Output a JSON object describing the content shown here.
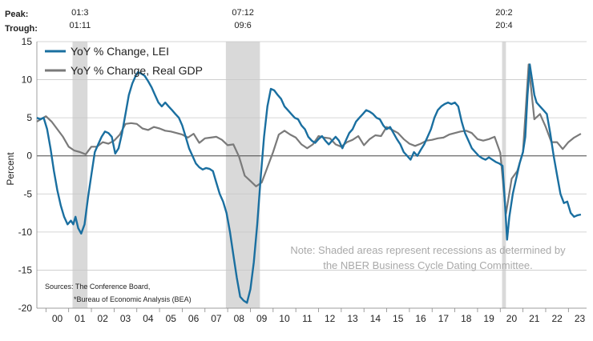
{
  "labels": {
    "peak": "Peak:",
    "trough": "Trough:"
  },
  "recessions": [
    {
      "peak": "01:3",
      "trough": "01:11",
      "start": 2001.17,
      "end": 2001.83
    },
    {
      "peak": "07:12",
      "trough": "09:6",
      "start": 2007.92,
      "end": 2009.42
    },
    {
      "peak": "20:2",
      "trough": "20:4",
      "start": 2020.08,
      "end": 2020.25
    }
  ],
  "legend": {
    "lei": "YoY % Change, LEI",
    "gdp": "YoY % Change, Real GDP"
  },
  "sources": {
    "line1": "Sources: The Conference Board,",
    "line2": "*Bureau of Economic Analysis (BEA)"
  },
  "note": {
    "line1": "Note: Shaded areas represent recessions as determined by",
    "line2": "the NBER Business Cycle Dating Committee."
  },
  "colors": {
    "lei": "#1a6fa0",
    "gdp": "#7a7a7a",
    "recession": "#d9d9d9",
    "grid": "#c8c8c8"
  },
  "chart_data": {
    "type": "line",
    "title": "",
    "xlabel": "",
    "ylabel": "Percent",
    "ylim": [
      -20,
      15
    ],
    "xlim": [
      1999.6,
      2023.8
    ],
    "yticks": [
      15,
      10,
      5,
      0,
      -5,
      -10,
      -15,
      -20
    ],
    "ytick_labels": [
      "15",
      "10",
      "5",
      "0",
      "-5",
      "-10",
      "-15",
      "-20"
    ],
    "xtick_labels": [
      "00",
      "01",
      "02",
      "03",
      "04",
      "05",
      "06",
      "07",
      "08",
      "09",
      "10",
      "11",
      "12",
      "13",
      "14",
      "15",
      "16",
      "17",
      "18",
      "19",
      "20",
      "21",
      "22",
      "23"
    ],
    "xtick_years": [
      2000,
      2001,
      2002,
      2003,
      2004,
      2005,
      2006,
      2007,
      2008,
      2009,
      2010,
      2011,
      2012,
      2013,
      2014,
      2015,
      2016,
      2017,
      2018,
      2019,
      2020,
      2021,
      2022,
      2023
    ],
    "grid": "horizontal",
    "legend_position": "top-left",
    "series": [
      {
        "name": "YoY % Change, LEI",
        "x": [
          1999.6,
          1999.75,
          1999.9,
          2000.05,
          2000.2,
          2000.35,
          2000.5,
          2000.65,
          2000.8,
          2000.95,
          2001.1,
          2001.2,
          2001.3,
          2001.42,
          2001.55,
          2001.7,
          2001.85,
          2002.0,
          2002.15,
          2002.3,
          2002.45,
          2002.6,
          2002.75,
          2002.9,
          2003.05,
          2003.2,
          2003.35,
          2003.5,
          2003.65,
          2003.8,
          2003.95,
          2004.05,
          2004.2,
          2004.35,
          2004.5,
          2004.65,
          2004.8,
          2004.95,
          2005.1,
          2005.25,
          2005.4,
          2005.55,
          2005.7,
          2005.85,
          2006.0,
          2006.15,
          2006.3,
          2006.45,
          2006.6,
          2006.75,
          2006.9,
          2007.05,
          2007.2,
          2007.35,
          2007.5,
          2007.65,
          2007.8,
          2007.95,
          2008.1,
          2008.25,
          2008.4,
          2008.55,
          2008.7,
          2008.85,
          2009.0,
          2009.15,
          2009.3,
          2009.45,
          2009.6,
          2009.75,
          2009.9,
          2010.05,
          2010.2,
          2010.35,
          2010.5,
          2010.65,
          2010.8,
          2010.95,
          2011.1,
          2011.25,
          2011.4,
          2011.55,
          2011.7,
          2011.85,
          2012.0,
          2012.15,
          2012.3,
          2012.45,
          2012.6,
          2012.75,
          2012.9,
          2013.05,
          2013.2,
          2013.35,
          2013.5,
          2013.65,
          2013.8,
          2013.95,
          2014.1,
          2014.25,
          2014.4,
          2014.55,
          2014.7,
          2014.85,
          2015.0,
          2015.15,
          2015.3,
          2015.45,
          2015.6,
          2015.75,
          2015.9,
          2016.05,
          2016.2,
          2016.35,
          2016.5,
          2016.65,
          2016.8,
          2016.95,
          2017.1,
          2017.25,
          2017.4,
          2017.55,
          2017.7,
          2017.85,
          2018.0,
          2018.15,
          2018.3,
          2018.45,
          2018.6,
          2018.75,
          2018.9,
          2019.05,
          2019.2,
          2019.35,
          2019.5,
          2019.65,
          2019.8,
          2019.95,
          2020.1,
          2020.2,
          2020.3,
          2020.4,
          2020.55,
          2020.7,
          2020.85,
          2021.0,
          2021.1,
          2021.2,
          2021.3,
          2021.4,
          2021.5,
          2021.6,
          2021.75,
          2021.9,
          2022.05,
          2022.2,
          2022.35,
          2022.5,
          2022.65,
          2022.8,
          2022.95,
          2023.1,
          2023.25,
          2023.4,
          2023.55
        ],
        "values": [
          5.0,
          4.8,
          5.0,
          3.5,
          1.0,
          -2.0,
          -4.5,
          -6.5,
          -8.0,
          -9.0,
          -8.5,
          -9.0,
          -8.0,
          -9.5,
          -10.2,
          -9.0,
          -5.5,
          -2.5,
          0.5,
          1.5,
          2.5,
          3.2,
          3.0,
          2.5,
          0.3,
          1.0,
          3.0,
          5.5,
          8.0,
          9.5,
          10.5,
          11.0,
          10.8,
          10.5,
          9.8,
          9.0,
          8.0,
          7.0,
          6.5,
          7.0,
          6.5,
          6.0,
          5.5,
          5.0,
          4.0,
          2.5,
          1.0,
          0.0,
          -1.0,
          -1.5,
          -1.8,
          -1.6,
          -1.7,
          -2.0,
          -3.5,
          -5.0,
          -6.0,
          -7.5,
          -10.0,
          -13.0,
          -16.0,
          -18.5,
          -19.0,
          -19.3,
          -17.5,
          -14.0,
          -9.0,
          -3.0,
          2.5,
          6.5,
          8.8,
          8.6,
          8.0,
          7.5,
          6.5,
          6.0,
          5.5,
          5.0,
          4.8,
          4.0,
          3.5,
          2.5,
          2.0,
          1.7,
          2.2,
          2.6,
          2.0,
          1.5,
          2.0,
          2.5,
          2.0,
          1.0,
          2.0,
          3.0,
          3.5,
          4.5,
          5.0,
          5.5,
          6.0,
          5.8,
          5.5,
          5.0,
          4.8,
          4.0,
          3.5,
          3.8,
          3.0,
          2.2,
          1.5,
          0.5,
          0.0,
          -0.5,
          0.5,
          0.0,
          0.8,
          1.5,
          2.5,
          3.5,
          5.0,
          6.0,
          6.5,
          6.8,
          7.0,
          6.8,
          7.0,
          6.5,
          4.5,
          3.0,
          2.0,
          1.0,
          0.5,
          0.0,
          -0.3,
          -0.5,
          -0.2,
          -0.5,
          -0.8,
          -1.0,
          -1.3,
          -6.0,
          -11.0,
          -8.0,
          -5.0,
          -3.0,
          -1.0,
          0.5,
          2.5,
          8.0,
          12.0,
          10.0,
          8.0,
          7.0,
          6.5,
          6.0,
          5.5,
          3.0,
          0.0,
          -2.5,
          -5.0,
          -6.2,
          -6.0,
          -7.5,
          -8.0,
          -7.8,
          -7.7
        ]
      },
      {
        "name": "YoY % Change, Real GDP",
        "x": [
          1999.6,
          2000.0,
          2000.25,
          2000.5,
          2000.75,
          2001.0,
          2001.25,
          2001.5,
          2001.75,
          2002.0,
          2002.25,
          2002.5,
          2002.75,
          2003.0,
          2003.25,
          2003.5,
          2003.75,
          2004.0,
          2004.25,
          2004.5,
          2004.75,
          2005.0,
          2005.25,
          2005.5,
          2005.75,
          2006.0,
          2006.25,
          2006.5,
          2006.75,
          2007.0,
          2007.25,
          2007.5,
          2007.75,
          2008.0,
          2008.25,
          2008.5,
          2008.75,
          2009.0,
          2009.25,
          2009.5,
          2009.75,
          2010.0,
          2010.25,
          2010.5,
          2010.75,
          2011.0,
          2011.25,
          2011.5,
          2011.75,
          2012.0,
          2012.25,
          2012.5,
          2012.75,
          2013.0,
          2013.25,
          2013.5,
          2013.75,
          2014.0,
          2014.25,
          2014.5,
          2014.75,
          2015.0,
          2015.25,
          2015.5,
          2015.75,
          2016.0,
          2016.25,
          2016.5,
          2016.75,
          2017.0,
          2017.25,
          2017.5,
          2017.75,
          2018.0,
          2018.25,
          2018.5,
          2018.75,
          2019.0,
          2019.25,
          2019.5,
          2019.75,
          2020.0,
          2020.25,
          2020.5,
          2020.75,
          2021.0,
          2021.25,
          2021.5,
          2021.75,
          2022.0,
          2022.25,
          2022.5,
          2022.75,
          2023.0,
          2023.25,
          2023.55
        ],
        "values": [
          4.5,
          5.2,
          4.5,
          3.5,
          2.5,
          1.2,
          0.7,
          0.5,
          0.2,
          1.2,
          1.2,
          1.8,
          1.6,
          2.0,
          2.8,
          4.2,
          4.3,
          4.2,
          3.6,
          3.4,
          3.8,
          3.6,
          3.3,
          3.2,
          3.0,
          2.8,
          2.4,
          2.9,
          1.7,
          2.3,
          2.4,
          2.5,
          2.1,
          1.4,
          1.5,
          -0.1,
          -2.6,
          -3.3,
          -4.0,
          -3.5,
          -1.5,
          0.5,
          2.8,
          3.3,
          2.8,
          2.4,
          1.5,
          1.0,
          1.5,
          2.6,
          2.4,
          2.3,
          1.5,
          1.2,
          1.8,
          2.1,
          2.6,
          1.4,
          2.2,
          2.7,
          2.6,
          3.8,
          3.4,
          3.0,
          2.2,
          1.6,
          1.3,
          1.6,
          2.0,
          2.1,
          2.3,
          2.4,
          2.8,
          3.0,
          3.2,
          3.3,
          3.0,
          2.2,
          2.0,
          2.2,
          2.5,
          0.4,
          -7.6,
          -3.0,
          -2.0,
          0.5,
          12.0,
          4.8,
          5.5,
          3.8,
          1.8,
          1.8,
          0.9,
          1.8,
          2.4,
          2.9
        ]
      }
    ]
  }
}
